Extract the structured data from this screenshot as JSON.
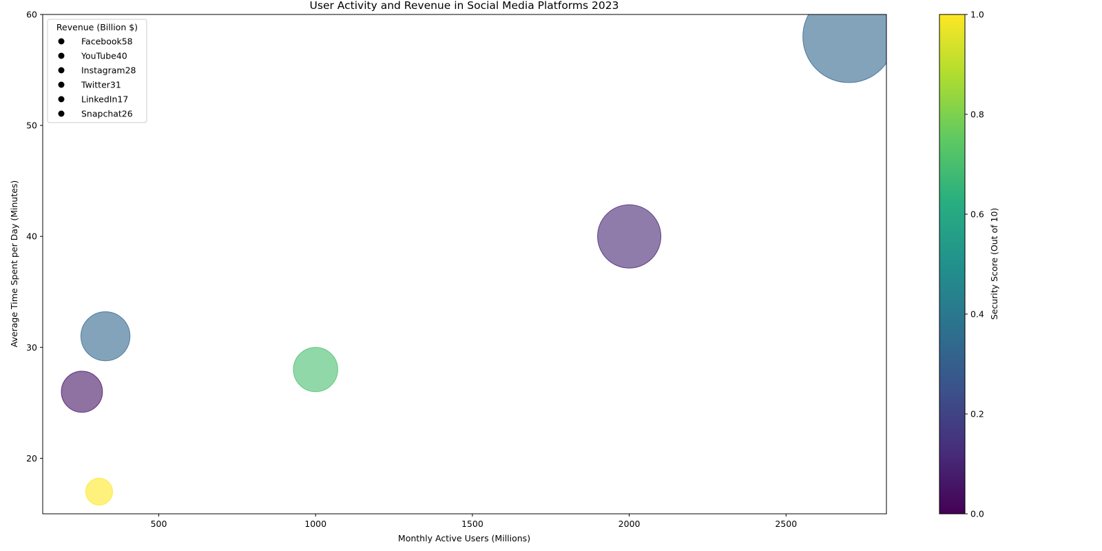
{
  "chart_data": {
    "type": "scatter",
    "title": "User Activity and Revenue in Social Media Platforms 2023",
    "xlabel": "Monthly Active Users (Millions)",
    "ylabel": "Average Time Spent per Day (Minutes)",
    "xlim": [
      130,
      2820
    ],
    "ylim": [
      15,
      60
    ],
    "xticks": [
      500,
      1000,
      1500,
      2000,
      2500
    ],
    "yticks": [
      20,
      30,
      40,
      50,
      60
    ],
    "grid": false,
    "colormap": "viridis",
    "colorbar": {
      "label": "Security Score (Out of 10)",
      "range": [
        0,
        1
      ],
      "ticks": [
        "0.0",
        "0.2",
        "0.4",
        "0.6",
        "0.8",
        "1.0"
      ]
    },
    "legend": {
      "title": "Revenue (Billion $)",
      "placement": "top-left",
      "entries": [
        "Facebook58",
        "YouTube40",
        "Instagram28",
        "Twitter31",
        "LinkedIn17",
        "Snapchat26"
      ]
    },
    "points": [
      {
        "x": 2700,
        "y": 58,
        "size": 58,
        "color_value": 0.33
      },
      {
        "x": 2000,
        "y": 40,
        "size": 40,
        "color_value": 0.1
      },
      {
        "x": 1000,
        "y": 28,
        "size": 28,
        "color_value": 0.7
      },
      {
        "x": 330,
        "y": 31,
        "size": 31,
        "color_value": 0.33
      },
      {
        "x": 310,
        "y": 17,
        "size": 17,
        "color_value": 1.0
      },
      {
        "x": 255,
        "y": 26,
        "size": 26,
        "color_value": 0.05
      }
    ]
  }
}
